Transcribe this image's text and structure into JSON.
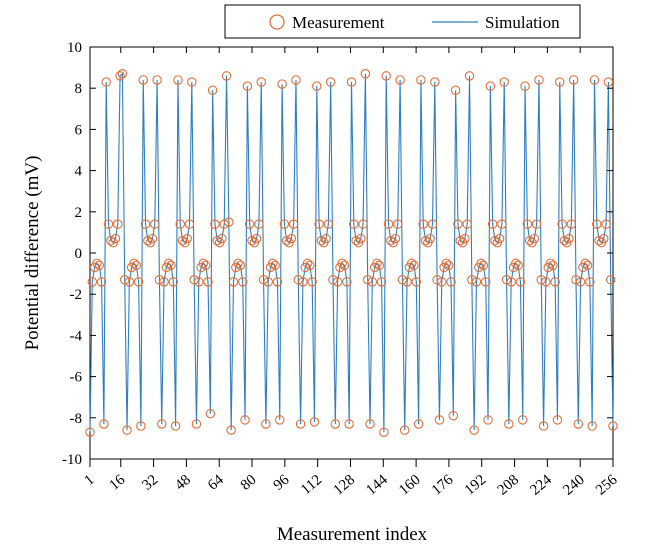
{
  "chart_data": {
    "type": "line",
    "xlabel": "Measurement index",
    "ylabel": "Potential difference (mV)",
    "xlim": [
      1,
      256
    ],
    "ylim": [
      -10,
      10
    ],
    "x_ticks": [
      1,
      16,
      32,
      48,
      64,
      80,
      96,
      112,
      128,
      144,
      160,
      176,
      192,
      208,
      224,
      240,
      256
    ],
    "y_ticks": [
      -10,
      -8,
      -6,
      -4,
      -2,
      0,
      2,
      4,
      6,
      8,
      10
    ],
    "legend": {
      "placement": "top-right",
      "entries": [
        "Measurement",
        "Simulation"
      ]
    },
    "grid": false,
    "series": [
      {
        "name": "Measurement",
        "style": "marker-circle",
        "color": "#e0703a",
        "values": [
          -8.7,
          -1.4,
          -0.7,
          -0.5,
          -0.6,
          -1.4,
          -8.3,
          8.3,
          1.4,
          0.6,
          0.5,
          0.7,
          1.4,
          8.6,
          8.7,
          -1.3,
          -8.6,
          -1.4,
          -0.7,
          -0.5,
          -0.6,
          -1.4,
          -8.4,
          8.4,
          1.4,
          0.6,
          0.5,
          0.7,
          1.4,
          8.4,
          -1.3,
          -8.3,
          -1.4,
          -0.7,
          -0.5,
          -0.6,
          -1.4,
          -8.4,
          8.4,
          1.4,
          0.6,
          0.5,
          0.7,
          1.4,
          8.3,
          -1.3,
          -8.3,
          -1.4,
          -0.7,
          -0.5,
          -0.6,
          -1.4,
          -7.8,
          7.9,
          1.4,
          0.6,
          0.5,
          0.7,
          1.4,
          8.6,
          1.5,
          -8.6,
          -1.4,
          -0.7,
          -0.5,
          -0.6,
          -1.4,
          -8.1,
          8.1,
          1.4,
          0.6,
          0.5,
          0.7,
          1.4,
          8.3,
          -1.3,
          -8.3,
          -1.4,
          -0.7,
          -0.5,
          -0.6,
          -1.4,
          -8.1,
          8.2,
          1.4,
          0.6,
          0.5,
          0.7,
          1.4,
          8.4,
          -1.3,
          -8.3,
          -1.4,
          -0.7,
          -0.5,
          -0.6,
          -1.4,
          -8.2,
          8.1,
          1.4,
          0.6,
          0.5,
          0.7,
          1.4,
          8.3,
          -1.3,
          -8.3,
          -1.4,
          -0.7,
          -0.5,
          -0.6,
          -1.4,
          -8.3,
          8.3,
          1.4,
          0.6,
          0.5,
          0.7,
          1.4,
          8.7,
          -1.3,
          -8.3,
          -1.4,
          -0.7,
          -0.5,
          -0.6,
          -1.4,
          -8.7,
          8.6,
          1.4,
          0.6,
          0.5,
          0.7,
          1.4,
          8.4,
          -1.3,
          -8.6,
          -1.4,
          -0.7,
          -0.5,
          -0.6,
          -1.4,
          -8.3,
          8.4,
          1.4,
          0.6,
          0.5,
          0.7,
          1.4,
          8.3,
          -1.3,
          -8.1,
          -1.4,
          -0.7,
          -0.5,
          -0.6,
          -1.4,
          -7.9,
          7.9,
          1.4,
          0.6,
          0.5,
          0.7,
          1.4,
          8.6,
          -1.3,
          -8.6,
          -1.4,
          -0.7,
          -0.5,
          -0.6,
          -1.4,
          -8.1,
          8.1,
          1.4,
          0.6,
          0.5,
          0.7,
          1.4,
          8.3,
          -1.3,
          -8.3,
          -1.4,
          -0.7,
          -0.5,
          -0.6,
          -1.4,
          -8.1,
          8.1,
          1.4,
          0.6,
          0.5,
          0.7,
          1.4,
          8.4,
          -1.3,
          -8.4,
          -1.4,
          -0.7,
          -0.5,
          -0.6,
          -1.4,
          -8.1,
          8.3,
          1.4,
          0.6,
          0.5,
          0.7,
          1.4,
          8.4,
          -1.3,
          -8.3,
          -1.4,
          -0.7,
          -0.5,
          -0.6,
          -1.4,
          -8.4,
          8.4,
          1.4,
          0.6,
          0.5,
          0.7,
          1.4,
          8.3,
          -1.3,
          -8.4
        ]
      },
      {
        "name": "Simulation",
        "style": "line",
        "color": "#2f7fbf",
        "values": [
          -8.7,
          -1.4,
          -0.7,
          -0.5,
          -0.6,
          -1.4,
          -8.3,
          8.3,
          1.4,
          0.6,
          0.5,
          0.7,
          1.4,
          8.6,
          8.7,
          -1.3,
          -8.6,
          -1.4,
          -0.7,
          -0.5,
          -0.6,
          -1.4,
          -8.4,
          8.4,
          1.4,
          0.6,
          0.5,
          0.7,
          1.4,
          8.4,
          -1.3,
          -8.3,
          -1.4,
          -0.7,
          -0.5,
          -0.6,
          -1.4,
          -8.4,
          8.4,
          1.4,
          0.6,
          0.5,
          0.7,
          1.4,
          8.3,
          -1.3,
          -8.3,
          -1.4,
          -0.7,
          -0.5,
          -0.6,
          -1.4,
          -7.8,
          7.9,
          1.4,
          0.6,
          0.5,
          0.7,
          1.4,
          8.6,
          1.5,
          -8.6,
          -1.4,
          -0.7,
          -0.5,
          -0.6,
          -1.4,
          -8.1,
          8.1,
          1.4,
          0.6,
          0.5,
          0.7,
          1.4,
          8.3,
          -1.3,
          -8.3,
          -1.4,
          -0.7,
          -0.5,
          -0.6,
          -1.4,
          -8.1,
          8.2,
          1.4,
          0.6,
          0.5,
          0.7,
          1.4,
          8.4,
          -1.3,
          -8.3,
          -1.4,
          -0.7,
          -0.5,
          -0.6,
          -1.4,
          -8.2,
          8.1,
          1.4,
          0.6,
          0.5,
          0.7,
          1.4,
          8.3,
          -1.3,
          -8.3,
          -1.4,
          -0.7,
          -0.5,
          -0.6,
          -1.4,
          -8.3,
          8.3,
          1.4,
          0.6,
          0.5,
          0.7,
          1.4,
          8.7,
          -1.3,
          -8.3,
          -1.4,
          -0.7,
          -0.5,
          -0.6,
          -1.4,
          -8.7,
          8.6,
          1.4,
          0.6,
          0.5,
          0.7,
          1.4,
          8.4,
          -1.3,
          -8.6,
          -1.4,
          -0.7,
          -0.5,
          -0.6,
          -1.4,
          -8.3,
          8.4,
          1.4,
          0.6,
          0.5,
          0.7,
          1.4,
          8.3,
          -1.3,
          -8.1,
          -1.4,
          -0.7,
          -0.5,
          -0.6,
          -1.4,
          -7.9,
          7.9,
          1.4,
          0.6,
          0.5,
          0.7,
          1.4,
          8.6,
          -1.3,
          -8.6,
          -1.4,
          -0.7,
          -0.5,
          -0.6,
          -1.4,
          -8.1,
          8.1,
          1.4,
          0.6,
          0.5,
          0.7,
          1.4,
          8.3,
          -1.3,
          -8.3,
          -1.4,
          -0.7,
          -0.5,
          -0.6,
          -1.4,
          -8.1,
          8.1,
          1.4,
          0.6,
          0.5,
          0.7,
          1.4,
          8.4,
          -1.3,
          -8.4,
          -1.4,
          -0.7,
          -0.5,
          -0.6,
          -1.4,
          -8.1,
          8.3,
          1.4,
          0.6,
          0.5,
          0.7,
          1.4,
          8.4,
          -1.3,
          -8.3,
          -1.4,
          -0.7,
          -0.5,
          -0.6,
          -1.4,
          -8.4,
          8.4,
          1.4,
          0.6,
          0.5,
          0.7,
          1.4,
          8.3,
          -1.3,
          -8.4
        ]
      }
    ]
  }
}
